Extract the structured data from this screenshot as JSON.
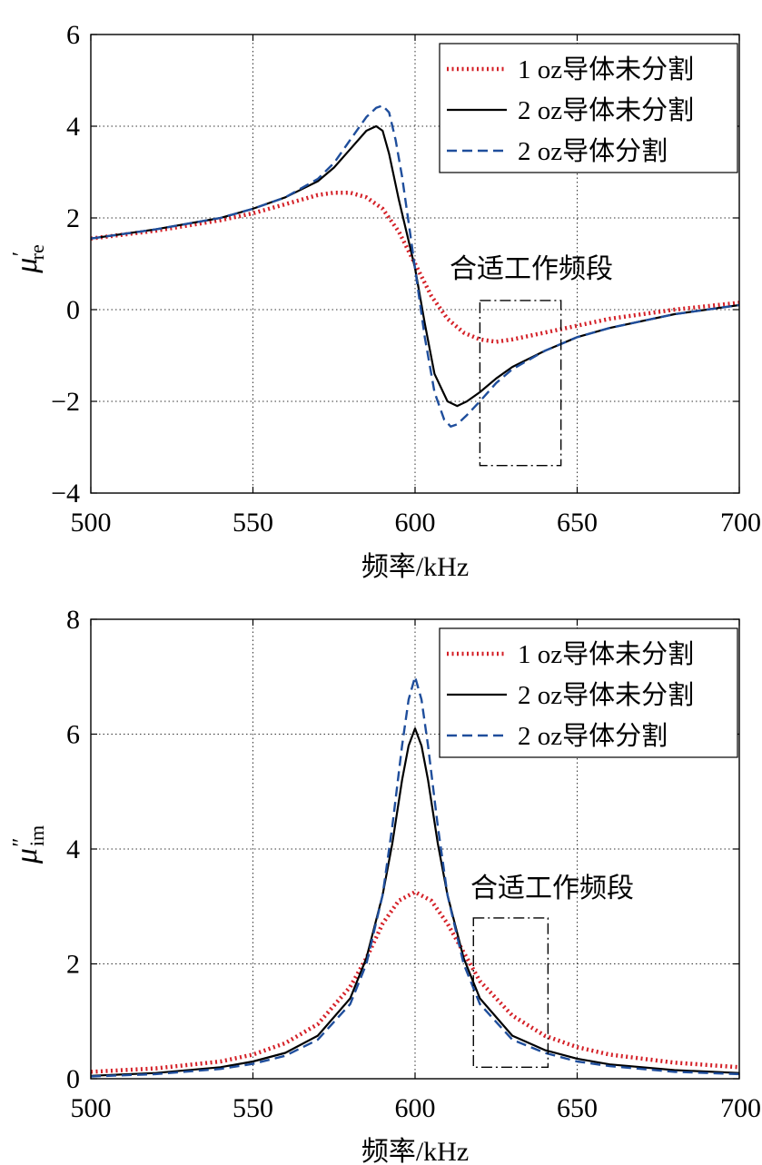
{
  "colors": {
    "series1": "#d42027",
    "series2": "#000000",
    "series3": "#1f4e9c",
    "axis": "#000000",
    "grid": "#333333",
    "annotation_box": "#000000"
  },
  "chart_data": [
    {
      "type": "line",
      "ylabel_symbol": "μ",
      "ylabel_prime": "′",
      "ylabel_sub": "re",
      "xlabel": "频率/kHz",
      "xlim": [
        500,
        700
      ],
      "ylim": [
        -4,
        6
      ],
      "xticks": [
        500,
        550,
        600,
        650,
        700
      ],
      "yticks": [
        -4,
        -2,
        0,
        2,
        4,
        6
      ],
      "xtick_labels": [
        "500",
        "550",
        "600",
        "650",
        "700"
      ],
      "ytick_labels": [
        "−4",
        "−2",
        "0",
        "2",
        "4",
        "6"
      ],
      "grid": true,
      "legend_placement": "top-right",
      "annotation": {
        "text": "合适工作频段",
        "x_range": [
          620,
          645
        ],
        "y_range": [
          -3.4,
          0.2
        ]
      },
      "series": [
        {
          "name": "1 oz导体未分割",
          "style": "dotted",
          "x": [
            500,
            520,
            540,
            550,
            560,
            570,
            575,
            580,
            585,
            590,
            595,
            600,
            605,
            610,
            615,
            620,
            625,
            630,
            640,
            650,
            660,
            680,
            700
          ],
          "y": [
            1.55,
            1.72,
            1.95,
            2.1,
            2.3,
            2.5,
            2.55,
            2.55,
            2.45,
            2.2,
            1.7,
            1.0,
            0.3,
            -0.2,
            -0.5,
            -0.65,
            -0.7,
            -0.65,
            -0.5,
            -0.35,
            -0.2,
            0.0,
            0.15
          ]
        },
        {
          "name": "2 oz导体未分割",
          "style": "solid",
          "x": [
            500,
            520,
            540,
            550,
            560,
            570,
            575,
            580,
            585,
            588,
            590,
            592,
            595,
            598,
            600,
            603,
            606,
            610,
            613,
            616,
            620,
            625,
            630,
            640,
            650,
            660,
            680,
            700
          ],
          "y": [
            1.55,
            1.75,
            2.0,
            2.2,
            2.45,
            2.8,
            3.1,
            3.5,
            3.9,
            4.0,
            3.9,
            3.4,
            2.4,
            1.5,
            0.9,
            -0.3,
            -1.4,
            -2.0,
            -2.1,
            -2.0,
            -1.8,
            -1.5,
            -1.25,
            -0.9,
            -0.6,
            -0.4,
            -0.1,
            0.1
          ]
        },
        {
          "name": "2 oz导体分割",
          "style": "dashed",
          "x": [
            500,
            520,
            540,
            550,
            560,
            570,
            575,
            580,
            585,
            588,
            590,
            592,
            594,
            596,
            598,
            600,
            603,
            606,
            609,
            611,
            613,
            616,
            620,
            625,
            630,
            640,
            650,
            660,
            680,
            700
          ],
          "y": [
            1.55,
            1.75,
            2.0,
            2.2,
            2.45,
            2.85,
            3.2,
            3.7,
            4.2,
            4.4,
            4.45,
            4.3,
            3.7,
            2.9,
            1.9,
            0.9,
            -0.6,
            -1.8,
            -2.4,
            -2.55,
            -2.5,
            -2.3,
            -2.0,
            -1.6,
            -1.3,
            -0.9,
            -0.6,
            -0.4,
            -0.1,
            0.1
          ]
        }
      ]
    },
    {
      "type": "line",
      "ylabel_symbol": "μ",
      "ylabel_prime": "″",
      "ylabel_sub": "im",
      "xlabel": "频率/kHz",
      "xlim": [
        500,
        700
      ],
      "ylim": [
        0,
        8
      ],
      "xticks": [
        500,
        550,
        600,
        650,
        700
      ],
      "yticks": [
        0,
        2,
        4,
        6,
        8
      ],
      "xtick_labels": [
        "500",
        "550",
        "600",
        "650",
        "700"
      ],
      "ytick_labels": [
        "0",
        "2",
        "4",
        "6",
        "8"
      ],
      "grid": true,
      "legend_placement": "top-right",
      "annotation": {
        "text": "合适工作频段",
        "x_range": [
          618,
          641
        ],
        "y_range": [
          0.2,
          2.8
        ]
      },
      "series": [
        {
          "name": "1 oz导体未分割",
          "style": "dotted",
          "x": [
            500,
            520,
            540,
            550,
            560,
            570,
            580,
            585,
            590,
            595,
            600,
            605,
            610,
            615,
            620,
            630,
            640,
            650,
            660,
            680,
            700
          ],
          "y": [
            0.12,
            0.18,
            0.3,
            0.42,
            0.62,
            0.95,
            1.6,
            2.1,
            2.7,
            3.1,
            3.25,
            3.1,
            2.7,
            2.2,
            1.7,
            1.1,
            0.75,
            0.55,
            0.42,
            0.28,
            0.2
          ]
        },
        {
          "name": "2 oz导体未分割",
          "style": "solid",
          "x": [
            500,
            520,
            540,
            550,
            560,
            570,
            580,
            585,
            590,
            593,
            596,
            598,
            600,
            602,
            604,
            607,
            610,
            615,
            620,
            630,
            640,
            650,
            660,
            680,
            700
          ],
          "y": [
            0.05,
            0.1,
            0.2,
            0.3,
            0.45,
            0.75,
            1.4,
            2.1,
            3.2,
            4.1,
            5.2,
            5.8,
            6.1,
            5.8,
            5.2,
            4.1,
            3.2,
            2.1,
            1.4,
            0.75,
            0.5,
            0.35,
            0.25,
            0.15,
            0.1
          ]
        },
        {
          "name": "2 oz导体分割",
          "style": "dashed",
          "x": [
            500,
            520,
            540,
            550,
            560,
            570,
            580,
            585,
            590,
            593,
            596,
            598,
            600,
            602,
            604,
            607,
            610,
            615,
            620,
            630,
            640,
            650,
            660,
            680,
            700
          ],
          "y": [
            0.04,
            0.08,
            0.17,
            0.26,
            0.4,
            0.68,
            1.3,
            2.0,
            3.2,
            4.4,
            5.8,
            6.6,
            7.0,
            6.6,
            5.8,
            4.4,
            3.2,
            2.0,
            1.3,
            0.68,
            0.45,
            0.3,
            0.22,
            0.12,
            0.08
          ]
        }
      ]
    }
  ]
}
